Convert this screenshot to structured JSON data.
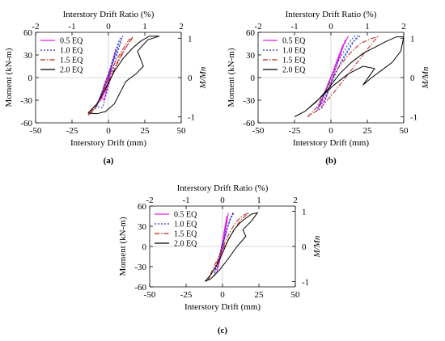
{
  "chart_data": [
    {
      "panel_label": "(a)",
      "type": "line",
      "top_xlabel": "Interstory Drift Ratio (%)",
      "xlabel": "Interstory Drift (mm)",
      "ylabel": "Moment (kN-m)",
      "right_ylabel": "M/Mn",
      "xlim": [
        -50,
        50
      ],
      "ylim": [
        -60,
        60
      ],
      "top_xlim": [
        -2,
        2
      ],
      "right_ylim": [
        -1.15,
        1.15
      ],
      "x_ticks": [
        "-50",
        "-25",
        "0",
        "25",
        "50"
      ],
      "y_ticks": [
        "60",
        "30",
        "0",
        "-30",
        "-60"
      ],
      "top_ticks": [
        "-2",
        "-1",
        "0",
        "1",
        "2"
      ],
      "right_ticks": [
        "1",
        "0",
        "-1"
      ],
      "legend_position": "top-left",
      "series": [
        {
          "name": "0.5 EQ",
          "color": "#e020e0",
          "dash": "solid",
          "x": [
            -6,
            -3,
            0,
            3,
            5,
            3,
            0,
            -3,
            -5,
            -3,
            0,
            4,
            2,
            -2,
            -6
          ],
          "y": [
            -32,
            -15,
            0,
            22,
            38,
            20,
            5,
            -10,
            -25,
            -30,
            -8,
            30,
            12,
            -18,
            -32
          ]
        },
        {
          "name": "1.0 EQ",
          "color": "#2030c8",
          "dash": "dotted",
          "x": [
            -9,
            -6,
            -2,
            2,
            6,
            8,
            10,
            7,
            3,
            -1,
            -5,
            -8,
            -4,
            0,
            5,
            9,
            -9
          ],
          "y": [
            -42,
            -30,
            -8,
            18,
            42,
            52,
            55,
            44,
            20,
            -5,
            -22,
            -38,
            -40,
            -12,
            25,
            50,
            -42
          ]
        },
        {
          "name": "1.5 EQ",
          "color": "#c02020",
          "dash": "dashdot",
          "x": [
            -14,
            -10,
            -5,
            0,
            5,
            10,
            14,
            17,
            12,
            6,
            0,
            -6,
            -11,
            -14,
            -8,
            0,
            8,
            16
          ],
          "y": [
            -50,
            -42,
            -25,
            0,
            22,
            38,
            50,
            54,
            40,
            18,
            -8,
            -30,
            -45,
            -50,
            -35,
            -6,
            28,
            52
          ]
        },
        {
          "name": "2.0 EQ",
          "color": "#000000",
          "dash": "solid",
          "x": [
            -14,
            -8,
            -2,
            4,
            10,
            16,
            22,
            28,
            35,
            27,
            20,
            24,
            19,
            12,
            8,
            4,
            -2,
            -8,
            -14
          ],
          "y": [
            -47,
            -35,
            -15,
            8,
            25,
            38,
            48,
            55,
            55,
            50,
            35,
            15,
            5,
            -5,
            -20,
            -35,
            -45,
            -48,
            -47
          ]
        }
      ]
    },
    {
      "panel_label": "(b)",
      "type": "line",
      "top_xlabel": "Interstory Drift Ratio (%)",
      "xlabel": "Interstory Drift (mm)",
      "ylabel": "Moment (kN-m)",
      "right_ylabel": "M/Mn",
      "xlim": [
        -50,
        50
      ],
      "ylim": [
        -60,
        60
      ],
      "top_xlim": [
        -2,
        2
      ],
      "right_ylim": [
        -1.15,
        1.15
      ],
      "x_ticks": [
        "-50",
        "-25",
        "0",
        "25",
        "50"
      ],
      "y_ticks": [
        "60",
        "30",
        "0",
        "-30",
        "-60"
      ],
      "top_ticks": [
        "-2",
        "-1",
        "0",
        "1",
        "2"
      ],
      "right_ticks": [
        "1",
        "0",
        "-1"
      ],
      "legend_position": "top-left",
      "series": [
        {
          "name": "0.5 EQ",
          "color": "#e020e0",
          "dash": "solid",
          "x": [
            -8,
            -4,
            0,
            4,
            8,
            12,
            8,
            3,
            -2,
            -6,
            -9,
            -4,
            2,
            10,
            -8
          ],
          "y": [
            -38,
            -20,
            0,
            22,
            42,
            55,
            40,
            15,
            -8,
            -28,
            -40,
            -30,
            5,
            50,
            -38
          ]
        },
        {
          "name": "1.0 EQ",
          "color": "#2030c8",
          "dash": "dotted",
          "x": [
            -10,
            -5,
            0,
            6,
            12,
            16,
            20,
            14,
            8,
            2,
            -4,
            -10,
            -6,
            4,
            18
          ],
          "y": [
            -45,
            -25,
            0,
            25,
            45,
            55,
            55,
            45,
            25,
            0,
            -25,
            -45,
            -40,
            10,
            55
          ]
        },
        {
          "name": "1.5 EQ",
          "color": "#c02020",
          "dash": "dashdot",
          "x": [
            -16,
            -10,
            -4,
            4,
            12,
            20,
            28,
            32,
            26,
            18,
            10,
            2,
            -8,
            -16
          ],
          "y": [
            -52,
            -40,
            -18,
            10,
            30,
            45,
            52,
            54,
            40,
            20,
            0,
            -20,
            -42,
            -52
          ]
        },
        {
          "name": "2.0 EQ",
          "color": "#000000",
          "dash": "solid",
          "x": [
            -25,
            -18,
            -10,
            -2,
            6,
            14,
            22,
            30,
            38,
            45,
            50,
            48,
            42,
            35,
            28,
            22,
            30,
            22,
            12,
            2,
            -8,
            -18,
            -25
          ],
          "y": [
            -52,
            -45,
            -32,
            -15,
            5,
            20,
            32,
            40,
            48,
            54,
            54,
            35,
            20,
            10,
            0,
            -10,
            12,
            15,
            5,
            -10,
            -28,
            -45,
            -52
          ]
        }
      ]
    },
    {
      "panel_label": "(c)",
      "type": "line",
      "top_xlabel": "Interstory Drift Ratio (%)",
      "xlabel": "Interstory Drift (mm)",
      "ylabel": "Moment (kN-m)",
      "right_ylabel": "M/Mn",
      "xlim": [
        -50,
        50
      ],
      "ylim": [
        -60,
        60
      ],
      "top_xlim": [
        -2,
        2
      ],
      "right_ylim": [
        -1.15,
        1.15
      ],
      "x_ticks": [
        "-50",
        "-25",
        "0",
        "25",
        "50"
      ],
      "y_ticks": [
        "60",
        "30",
        "0",
        "-30",
        "-60"
      ],
      "top_ticks": [
        "-2",
        "-1",
        "0",
        "1",
        "2"
      ],
      "right_ticks": [
        "1",
        "0",
        "-1"
      ],
      "legend_position": "top-left",
      "series": [
        {
          "name": "0.5 EQ",
          "color": "#e020e0",
          "dash": "solid",
          "x": [
            -4,
            -2,
            0,
            2,
            4,
            3,
            1,
            -1,
            -3,
            -4,
            0,
            3,
            -4
          ],
          "y": [
            -40,
            -22,
            0,
            25,
            50,
            35,
            10,
            -12,
            -30,
            -40,
            -5,
            45,
            -40
          ]
        },
        {
          "name": "1.0 EQ",
          "color": "#2030c8",
          "dash": "dotted",
          "x": [
            -6,
            -3,
            0,
            3,
            6,
            8,
            5,
            2,
            -2,
            -5,
            -6,
            0,
            7
          ],
          "y": [
            -45,
            -25,
            0,
            25,
            45,
            50,
            40,
            15,
            -12,
            -35,
            -45,
            5,
            50
          ]
        },
        {
          "name": "1.5 EQ",
          "color": "#c02020",
          "dash": "dashdot",
          "x": [
            -10,
            -6,
            -2,
            2,
            6,
            10,
            14,
            18,
            12,
            6,
            0,
            -6,
            -10
          ],
          "y": [
            -50,
            -35,
            -15,
            8,
            25,
            38,
            46,
            50,
            38,
            18,
            -5,
            -30,
            -50
          ]
        },
        {
          "name": "2.0 EQ",
          "color": "#000000",
          "dash": "solid",
          "x": [
            -12,
            -8,
            -4,
            0,
            4,
            8,
            12,
            16,
            20,
            24,
            20,
            14,
            16,
            10,
            4,
            -2,
            -8,
            -12
          ],
          "y": [
            -52,
            -42,
            -28,
            -10,
            10,
            25,
            35,
            42,
            48,
            50,
            38,
            25,
            15,
            0,
            -18,
            -35,
            -48,
            -52
          ]
        }
      ]
    }
  ]
}
